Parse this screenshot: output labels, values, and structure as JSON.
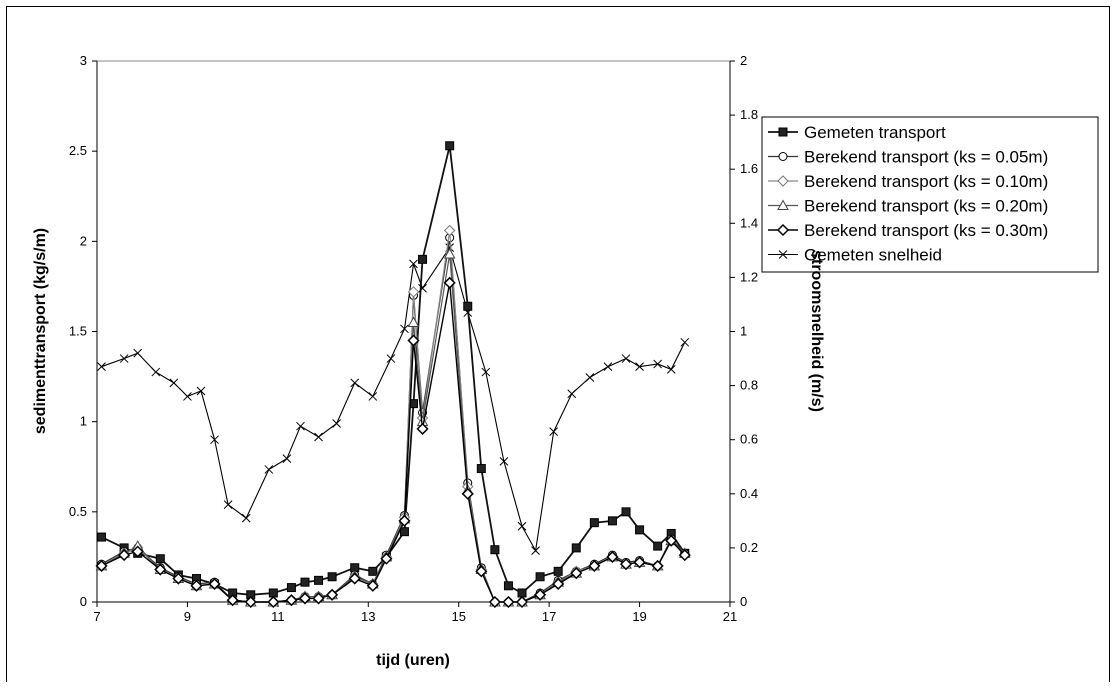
{
  "chart_data": {
    "type": "line",
    "xlabel": "tijd (uren)",
    "ylabel": "sedimenttransport (kg/s/m)",
    "y2label": "stroomsnelheid (m/s)",
    "xlim": [
      7,
      21
    ],
    "ylim": [
      0,
      3
    ],
    "y2lim": [
      0,
      2
    ],
    "xticks": [
      7,
      9,
      11,
      13,
      15,
      17,
      19,
      21
    ],
    "yticks": [
      0,
      0.5,
      1,
      1.5,
      2,
      2.5,
      3
    ],
    "y2ticks": [
      0,
      0.2,
      0.4,
      0.6,
      0.8,
      1,
      1.2,
      1.4,
      1.6,
      1.8,
      2
    ],
    "legend_position": "right",
    "series": [
      {
        "name": "Gemeten transport",
        "axis": "left",
        "marker": "filled-square",
        "x": [
          7.1,
          7.6,
          7.9,
          8.4,
          8.8,
          9.2,
          9.6,
          10.0,
          10.4,
          10.9,
          11.3,
          11.6,
          11.9,
          12.2,
          12.7,
          13.1,
          13.4,
          13.8,
          14.0,
          14.2,
          14.8,
          15.2,
          15.5,
          15.8,
          16.1,
          16.4,
          16.8,
          17.2,
          17.6,
          18.0,
          18.4,
          18.7,
          19.0,
          19.4,
          19.7,
          20.0
        ],
        "values": [
          0.36,
          0.3,
          0.27,
          0.24,
          0.15,
          0.13,
          0.1,
          0.05,
          0.04,
          0.05,
          0.08,
          0.11,
          0.12,
          0.14,
          0.19,
          0.17,
          0.25,
          0.39,
          1.1,
          1.9,
          2.53,
          1.64,
          0.74,
          0.29,
          0.09,
          0.05,
          0.14,
          0.17,
          0.3,
          0.44,
          0.45,
          0.5,
          0.4,
          0.31,
          0.38,
          0.27
        ]
      },
      {
        "name": "Berekend transport (ks = 0.05m)",
        "axis": "left",
        "marker": "open-circle",
        "x": [
          7.1,
          7.6,
          7.9,
          8.4,
          8.8,
          9.2,
          9.6,
          10.0,
          10.4,
          10.9,
          11.3,
          11.6,
          11.9,
          12.2,
          12.7,
          13.1,
          13.4,
          13.8,
          14.0,
          14.2,
          14.8,
          15.2,
          15.5,
          15.8,
          16.1,
          16.4,
          16.8,
          17.2,
          17.6,
          18.0,
          18.4,
          18.7,
          19.0,
          19.4,
          19.7,
          20.0
        ],
        "values": [
          0.21,
          0.28,
          0.3,
          0.19,
          0.14,
          0.1,
          0.11,
          0.01,
          0.0,
          0.0,
          0.01,
          0.03,
          0.03,
          0.04,
          0.15,
          0.1,
          0.26,
          0.48,
          1.7,
          1.05,
          2.02,
          0.66,
          0.19,
          0.0,
          0.0,
          0.0,
          0.05,
          0.12,
          0.17,
          0.21,
          0.26,
          0.22,
          0.23,
          0.2,
          0.35,
          0.27
        ]
      },
      {
        "name": "Berekend transport (ks = 0.10m)",
        "axis": "left",
        "marker": "open-diamond",
        "x": [
          7.1,
          7.6,
          7.9,
          8.4,
          8.8,
          9.2,
          9.6,
          10.0,
          10.4,
          10.9,
          11.3,
          11.6,
          11.9,
          12.2,
          12.7,
          13.1,
          13.4,
          13.8,
          14.0,
          14.2,
          14.8,
          15.2,
          15.5,
          15.8,
          16.1,
          16.4,
          16.8,
          17.2,
          17.6,
          18.0,
          18.4,
          18.7,
          19.0,
          19.4,
          19.7,
          20.0
        ],
        "values": [
          0.2,
          0.27,
          0.3,
          0.18,
          0.13,
          0.09,
          0.1,
          0.01,
          0.0,
          0.0,
          0.01,
          0.03,
          0.03,
          0.04,
          0.14,
          0.1,
          0.25,
          0.47,
          1.72,
          1.02,
          2.06,
          0.64,
          0.18,
          0.0,
          0.0,
          0.0,
          0.04,
          0.11,
          0.17,
          0.2,
          0.25,
          0.21,
          0.22,
          0.2,
          0.34,
          0.26
        ]
      },
      {
        "name": "Berekend transport (ks = 0.20m)",
        "axis": "left",
        "marker": "open-triangle",
        "x": [
          7.1,
          7.6,
          7.9,
          8.4,
          8.8,
          9.2,
          9.6,
          10.0,
          10.4,
          10.9,
          11.3,
          11.6,
          11.9,
          12.2,
          12.7,
          13.1,
          13.4,
          13.8,
          14.0,
          14.2,
          14.8,
          15.2,
          15.5,
          15.8,
          16.1,
          16.4,
          16.8,
          17.2,
          17.6,
          18.0,
          18.4,
          18.7,
          19.0,
          19.4,
          19.7,
          20.0
        ],
        "values": [
          0.2,
          0.27,
          0.31,
          0.18,
          0.13,
          0.09,
          0.1,
          0.01,
          0.0,
          0.0,
          0.01,
          0.03,
          0.03,
          0.04,
          0.14,
          0.1,
          0.25,
          0.46,
          1.55,
          1.0,
          1.93,
          0.62,
          0.18,
          0.0,
          0.0,
          0.0,
          0.04,
          0.11,
          0.16,
          0.2,
          0.25,
          0.21,
          0.22,
          0.2,
          0.34,
          0.27
        ]
      },
      {
        "name": "Berekend transport (ks = 0.30m)",
        "axis": "left",
        "marker": "open-diamond-bold",
        "x": [
          7.1,
          7.6,
          7.9,
          8.4,
          8.8,
          9.2,
          9.6,
          10.0,
          10.4,
          10.9,
          11.3,
          11.6,
          11.9,
          12.2,
          12.7,
          13.1,
          13.4,
          13.8,
          14.0,
          14.2,
          14.8,
          15.2,
          15.5,
          15.8,
          16.1,
          16.4,
          16.8,
          17.2,
          17.6,
          18.0,
          18.4,
          18.7,
          19.0,
          19.4,
          19.7,
          20.0
        ],
        "values": [
          0.2,
          0.26,
          0.28,
          0.18,
          0.13,
          0.09,
          0.1,
          0.01,
          0.0,
          0.0,
          0.01,
          0.02,
          0.02,
          0.04,
          0.13,
          0.09,
          0.24,
          0.45,
          1.45,
          0.96,
          1.77,
          0.6,
          0.17,
          0.0,
          0.0,
          0.0,
          0.04,
          0.1,
          0.16,
          0.2,
          0.25,
          0.21,
          0.22,
          0.2,
          0.34,
          0.26
        ]
      },
      {
        "name": "Gemeten snelheid",
        "axis": "right",
        "marker": "x",
        "x": [
          7.1,
          7.6,
          7.9,
          8.3,
          8.7,
          9.0,
          9.3,
          9.6,
          9.9,
          10.3,
          10.8,
          11.2,
          11.5,
          11.9,
          12.3,
          12.7,
          13.1,
          13.5,
          13.8,
          14.0,
          14.2,
          14.8,
          15.2,
          15.6,
          16.0,
          16.4,
          16.7,
          17.1,
          17.5,
          17.9,
          18.3,
          18.7,
          19.0,
          19.4,
          19.7,
          20.0
        ],
        "values": [
          0.87,
          0.9,
          0.92,
          0.85,
          0.81,
          0.76,
          0.78,
          0.6,
          0.36,
          0.31,
          0.49,
          0.53,
          0.65,
          0.61,
          0.66,
          0.81,
          0.76,
          0.9,
          1.01,
          1.25,
          1.16,
          1.31,
          1.07,
          0.85,
          0.52,
          0.28,
          0.19,
          0.63,
          0.77,
          0.83,
          0.87,
          0.9,
          0.87,
          0.88,
          0.86,
          0.96
        ]
      }
    ]
  }
}
